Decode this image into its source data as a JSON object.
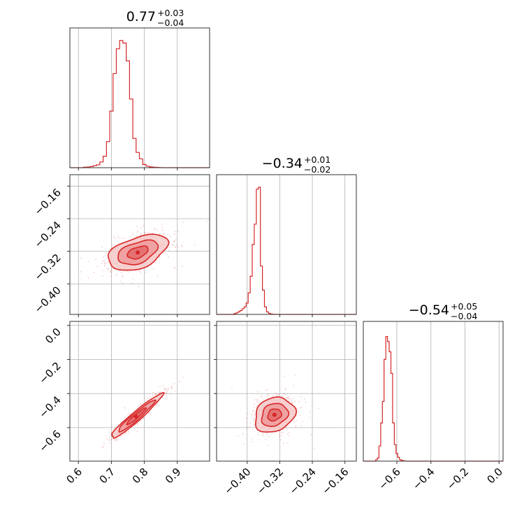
{
  "chart_data": {
    "type": "corner",
    "color": "#d62728",
    "parameters": [
      {
        "title": {
          "median": "0.77",
          "plus": "+0.03",
          "minus": "−0.04"
        },
        "range": [
          0.574,
          0.998
        ],
        "ticks": [
          {
            "value": 0.6,
            "label": "0.6"
          },
          {
            "value": 0.7,
            "label": "0.7"
          },
          {
            "value": 0.8,
            "label": "0.8"
          },
          {
            "value": 0.9,
            "label": "0.9"
          }
        ],
        "hist": {
          "start": 0.605,
          "step": 0.01,
          "counts": [
            0,
            0.004,
            0.005,
            0.009,
            0.016,
            0.023,
            0.045,
            0.09,
            0.205,
            0.445,
            0.74,
            0.935,
            1.0,
            0.98,
            0.84,
            0.54,
            0.23,
            0.12,
            0.07,
            0.025,
            0.012,
            0.006,
            0.004,
            0.002,
            0.001
          ]
        }
      },
      {
        "title": {
          "median": "−0.34",
          "plus": "+0.01",
          "minus": "−0.02"
        },
        "range": [
          -0.475,
          -0.132
        ],
        "ticks": [
          {
            "value": -0.4,
            "label": "−0.40"
          },
          {
            "value": -0.32,
            "label": "−0.32"
          },
          {
            "value": -0.24,
            "label": "−0.24"
          },
          {
            "value": -0.16,
            "label": "−0.16"
          }
        ],
        "hist": {
          "start": -0.4375,
          "step": 0.005,
          "counts": [
            0,
            0.006,
            0.012,
            0.02,
            0.03,
            0.045,
            0.06,
            0.09,
            0.17,
            0.3,
            0.55,
            0.71,
            0.985,
            1.0,
            0.38,
            0.19,
            0.06,
            0.02,
            0.008,
            0.003,
            0.001
          ]
        }
      },
      {
        "title": {
          "median": "−0.54",
          "plus": "+0.05",
          "minus": "−0.04"
        },
        "range": [
          -0.797,
          0.0237
        ],
        "ticks": [
          {
            "value": -0.6,
            "label": "−0.6"
          },
          {
            "value": -0.4,
            "label": "−0.4"
          },
          {
            "value": -0.2,
            "label": "−0.2"
          },
          {
            "value": 0.0,
            "label": "0.0"
          }
        ],
        "y_ticks": [
          {
            "value": -0.6,
            "label": "−0.6"
          },
          {
            "value": -0.4,
            "label": "−0.4"
          },
          {
            "value": -0.2,
            "label": "−0.2"
          },
          {
            "value": 0.0,
            "label": "0.0"
          }
        ],
        "hist": {
          "start": -0.735,
          "step": 0.01,
          "counts": [
            0,
            0.01,
            0.025,
            0.12,
            0.3,
            0.47,
            0.8,
            0.98,
            0.94,
            0.86,
            0.69,
            0.3,
            0.13,
            0.06,
            0.03,
            0.012,
            0.006,
            0.003,
            0.001
          ]
        }
      }
    ],
    "panels_2d": [
      {
        "x_param": 0,
        "y_param": 1,
        "center": [
          0.78,
          -0.323
        ],
        "spread": [
          0.045,
          0.022
        ],
        "correlation": 0.45,
        "levels": [
          0.7,
          1.35,
          2.0
        ]
      },
      {
        "x_param": 0,
        "y_param": 2,
        "center": [
          0.775,
          -0.535
        ],
        "spread": [
          0.037,
          0.062
        ],
        "correlation": 0.96,
        "levels": [
          0.8,
          1.5,
          2.1
        ]
      },
      {
        "x_param": 1,
        "y_param": 2,
        "center": [
          -0.333,
          -0.525
        ],
        "spread": [
          0.024,
          0.05
        ],
        "correlation": 0.2,
        "levels": [
          0.7,
          1.35,
          2.05
        ]
      }
    ],
    "grid": true,
    "axis_labels": []
  }
}
